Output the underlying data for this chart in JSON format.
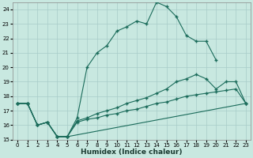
{
  "xlabel": "Humidex (Indice chaleur)",
  "bg_color": "#c8e8e0",
  "line_color": "#1a6b5a",
  "grid_color": "#a8ccc8",
  "xlim": [
    -0.5,
    23.5
  ],
  "ylim": [
    15,
    24.5
  ],
  "yticks": [
    15,
    16,
    17,
    18,
    19,
    20,
    21,
    22,
    23,
    24
  ],
  "xticks": [
    0,
    1,
    2,
    3,
    4,
    5,
    6,
    7,
    8,
    9,
    10,
    11,
    12,
    13,
    14,
    15,
    16,
    17,
    18,
    19,
    20,
    21,
    22,
    23
  ],
  "line1_x": [
    0,
    1,
    2,
    3,
    4,
    5,
    6,
    7,
    8,
    9,
    10,
    11,
    12,
    13,
    14,
    15,
    16,
    17,
    18,
    19,
    20
  ],
  "line1_y": [
    17.5,
    17.5,
    16.0,
    16.2,
    15.2,
    15.2,
    16.5,
    20.0,
    21.0,
    21.5,
    22.5,
    22.8,
    23.2,
    23.0,
    24.5,
    24.2,
    23.5,
    22.2,
    21.8,
    21.8,
    20.5
  ],
  "line2_x": [
    0,
    1,
    2,
    3,
    4,
    5,
    6,
    7,
    8,
    9,
    10,
    11,
    12,
    13,
    14,
    15,
    16,
    17,
    18,
    19,
    20,
    21,
    22,
    23
  ],
  "line2_y": [
    17.5,
    17.5,
    16.0,
    16.2,
    15.2,
    15.2,
    16.3,
    16.5,
    16.8,
    17.0,
    17.2,
    17.5,
    17.7,
    17.9,
    18.2,
    18.5,
    19.0,
    19.2,
    19.5,
    19.2,
    18.5,
    19.0,
    19.0,
    17.5
  ],
  "line3_x": [
    0,
    1,
    2,
    3,
    4,
    5,
    6,
    7,
    8,
    9,
    10,
    11,
    12,
    13,
    14,
    15,
    16,
    17,
    18,
    19,
    20,
    21,
    22,
    23
  ],
  "line3_y": [
    17.5,
    17.5,
    16.0,
    16.2,
    15.2,
    15.2,
    16.2,
    16.4,
    16.5,
    16.7,
    16.8,
    17.0,
    17.1,
    17.3,
    17.5,
    17.6,
    17.8,
    18.0,
    18.1,
    18.2,
    18.3,
    18.4,
    18.5,
    17.5
  ],
  "line4_x": [
    0,
    1,
    2,
    3,
    4,
    5,
    23
  ],
  "line4_y": [
    17.5,
    17.5,
    16.0,
    16.2,
    15.2,
    15.2,
    17.5
  ]
}
